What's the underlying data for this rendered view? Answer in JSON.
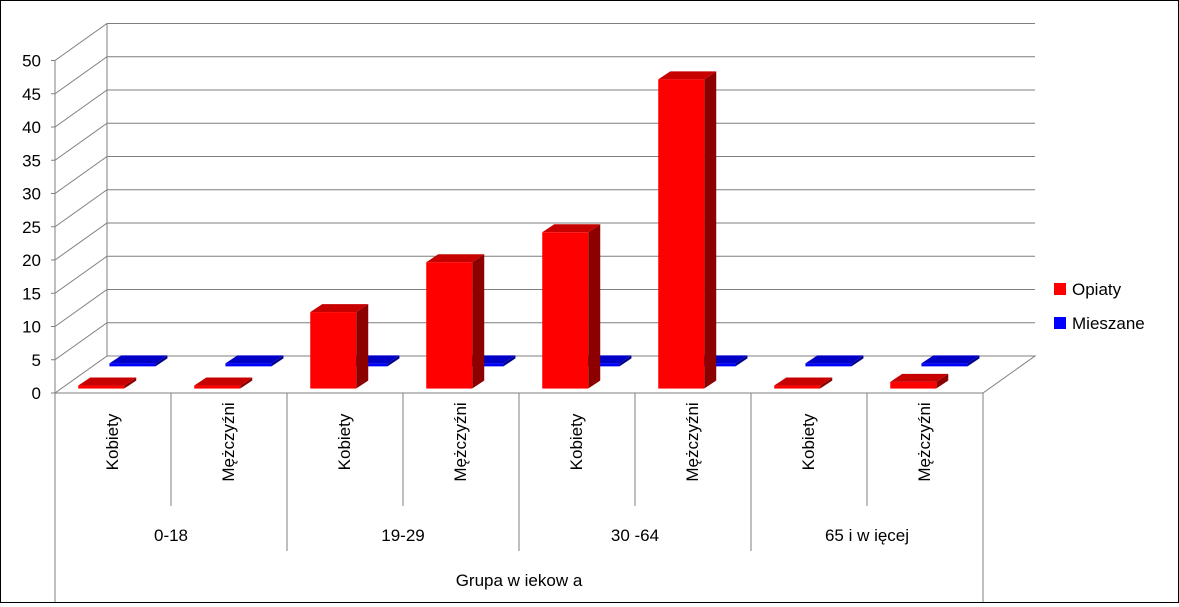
{
  "chart_data": {
    "type": "bar",
    "title": "",
    "xlabel": "Grupa w iekow a",
    "ylabel": "",
    "ylim": [
      0,
      50
    ],
    "yticks": [
      "0",
      "5",
      "10",
      "15",
      "20",
      "25",
      "30",
      "35",
      "40",
      "45",
      "50"
    ],
    "grid": true,
    "legend_position": "right",
    "groups": [
      "0-18",
      "19-29",
      "30 -64",
      "65 i w ięcej"
    ],
    "categories": [
      "Kobiety",
      "Mężczyźni",
      "Kobiety",
      "Mężczyźni",
      "Kobiety",
      "Mężczyźni",
      "Kobiety",
      "Mężczyźni"
    ],
    "series": [
      {
        "name": "Opiaty",
        "color": "#ff0000",
        "values": [
          0,
          0,
          11.5,
          19,
          23.5,
          46.5,
          0,
          1
        ]
      },
      {
        "name": "Mieszane",
        "color": "#0000ff",
        "values": [
          0,
          0,
          0,
          0,
          0,
          0,
          0,
          0
        ]
      }
    ]
  }
}
